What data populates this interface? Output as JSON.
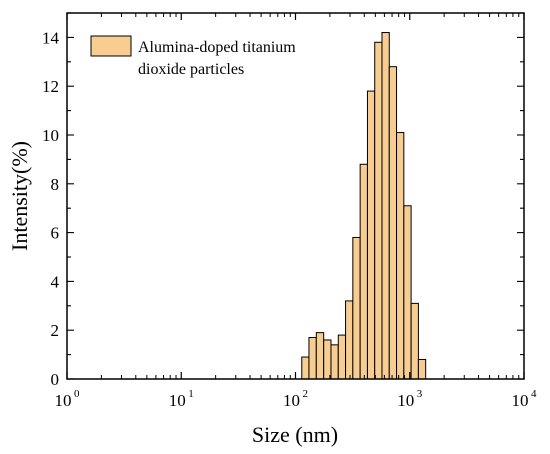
{
  "chart_data": {
    "type": "bar",
    "title": "",
    "xlabel": "Size (nm)",
    "ylabel": "Intensity(%)",
    "x_scale": "log",
    "xlim": [
      1,
      10000
    ],
    "ylim": [
      0,
      15
    ],
    "x_ticks": [
      {
        "value": 1,
        "base": "10",
        "exp": "0"
      },
      {
        "value": 10,
        "base": "10",
        "exp": "1"
      },
      {
        "value": 100,
        "base": "10",
        "exp": "2"
      },
      {
        "value": 1000,
        "base": "10",
        "exp": "3"
      },
      {
        "value": 10000,
        "base": "10",
        "exp": "4"
      }
    ],
    "y_ticks": [
      "0",
      "2",
      "4",
      "6",
      "8",
      "10",
      "12",
      "14"
    ],
    "grid": false,
    "legend": {
      "position": "top-left",
      "lines": [
        "Alumina-doped titanium",
        "dioxide particles"
      ]
    },
    "series": [
      {
        "name": "Alumina-doped titanium dioxide particles",
        "color": "#F8CD92",
        "edge_color": "#000000",
        "x": [
          122,
          141,
          164,
          190,
          220,
          255,
          295,
          342,
          396,
          459,
          531,
          615,
          712,
          825,
          955,
          1106,
          1281
        ],
        "values": [
          0.9,
          1.7,
          1.9,
          1.6,
          1.4,
          1.8,
          3.2,
          5.8,
          8.8,
          11.8,
          13.8,
          14.2,
          12.8,
          10.1,
          7.1,
          3.1,
          0.8
        ]
      }
    ]
  }
}
